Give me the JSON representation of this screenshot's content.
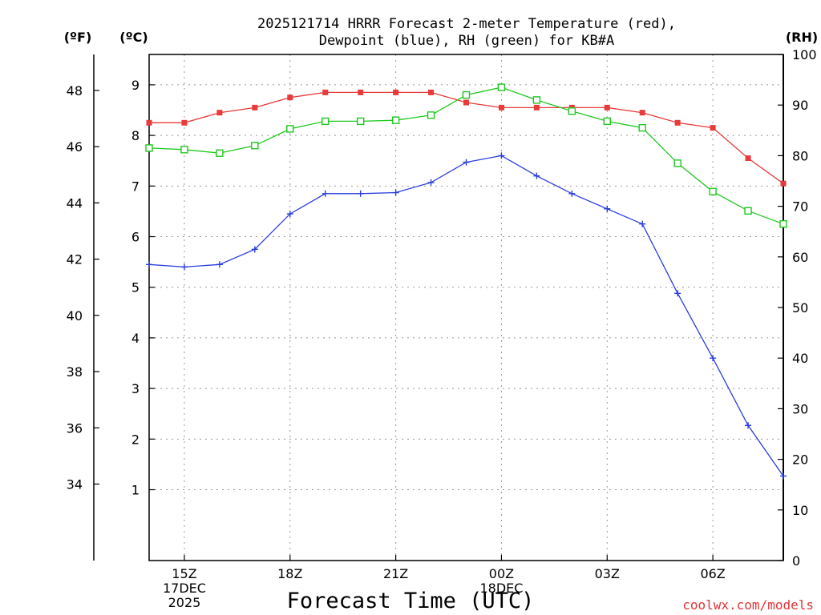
{
  "chart_data": {
    "type": "line",
    "title_line1": "2025121714 HRRR Forecast 2-meter Temperature (red),",
    "title_line2": "Dewpoint (blue), RH (green) for KB#A",
    "xlabel": "Forecast Time (UTC)",
    "credit": "coolwx.com/models",
    "unit_f": "(ºF)",
    "unit_c": "(ºC)",
    "unit_rh": "(RH)",
    "ylim_c": [
      -0.4,
      9.6
    ],
    "ylim_rh": [
      0,
      100
    ],
    "x_hours": [
      14,
      15,
      16,
      17,
      18,
      19,
      20,
      21,
      22,
      23,
      24,
      25,
      26,
      27,
      28,
      29,
      30,
      31,
      32
    ],
    "xlim": [
      14,
      32
    ],
    "x_ticks": [
      {
        "hour": 15,
        "lines": [
          "15Z",
          "17DEC",
          "2025"
        ]
      },
      {
        "hour": 18,
        "lines": [
          "18Z"
        ]
      },
      {
        "hour": 21,
        "lines": [
          "21Z"
        ]
      },
      {
        "hour": 24,
        "lines": [
          "00Z",
          "18DEC"
        ]
      },
      {
        "hour": 27,
        "lines": [
          "03Z"
        ]
      },
      {
        "hour": 30,
        "lines": [
          "06Z"
        ]
      }
    ],
    "y_ticks_c": [
      1,
      2,
      3,
      4,
      5,
      6,
      7,
      8,
      9
    ],
    "y_ticks_f": [
      34,
      36,
      38,
      40,
      42,
      44,
      46,
      48
    ],
    "y_ticks_rh": [
      0,
      10,
      20,
      30,
      40,
      50,
      60,
      70,
      80,
      90,
      100
    ],
    "series": [
      {
        "name": "Temperature",
        "axis": "C",
        "color": "#e83a3a",
        "marker": "filled-square",
        "values": [
          8.25,
          8.25,
          8.45,
          8.55,
          8.75,
          8.85,
          8.85,
          8.85,
          8.85,
          8.65,
          8.55,
          8.55,
          8.55,
          8.55,
          8.45,
          8.25,
          8.15,
          7.55,
          7.05
        ]
      },
      {
        "name": "Dewpoint",
        "axis": "C",
        "color": "#2a3de0",
        "marker": "plus",
        "values": [
          5.45,
          5.4,
          5.45,
          5.75,
          6.45,
          6.85,
          6.85,
          6.87,
          7.07,
          7.47,
          7.6,
          7.2,
          6.85,
          6.55,
          6.25,
          4.88,
          3.6,
          2.27,
          1.27
        ]
      },
      {
        "name": "RH",
        "axis": "RH",
        "color": "#1ec81e",
        "marker": "open-square",
        "values": [
          81.5,
          81.2,
          80.5,
          82.0,
          85.3,
          86.8,
          86.8,
          87.0,
          88.0,
          92.0,
          93.5,
          91.0,
          88.8,
          86.8,
          85.5,
          78.5,
          72.9,
          69.1,
          66.5
        ]
      }
    ]
  }
}
